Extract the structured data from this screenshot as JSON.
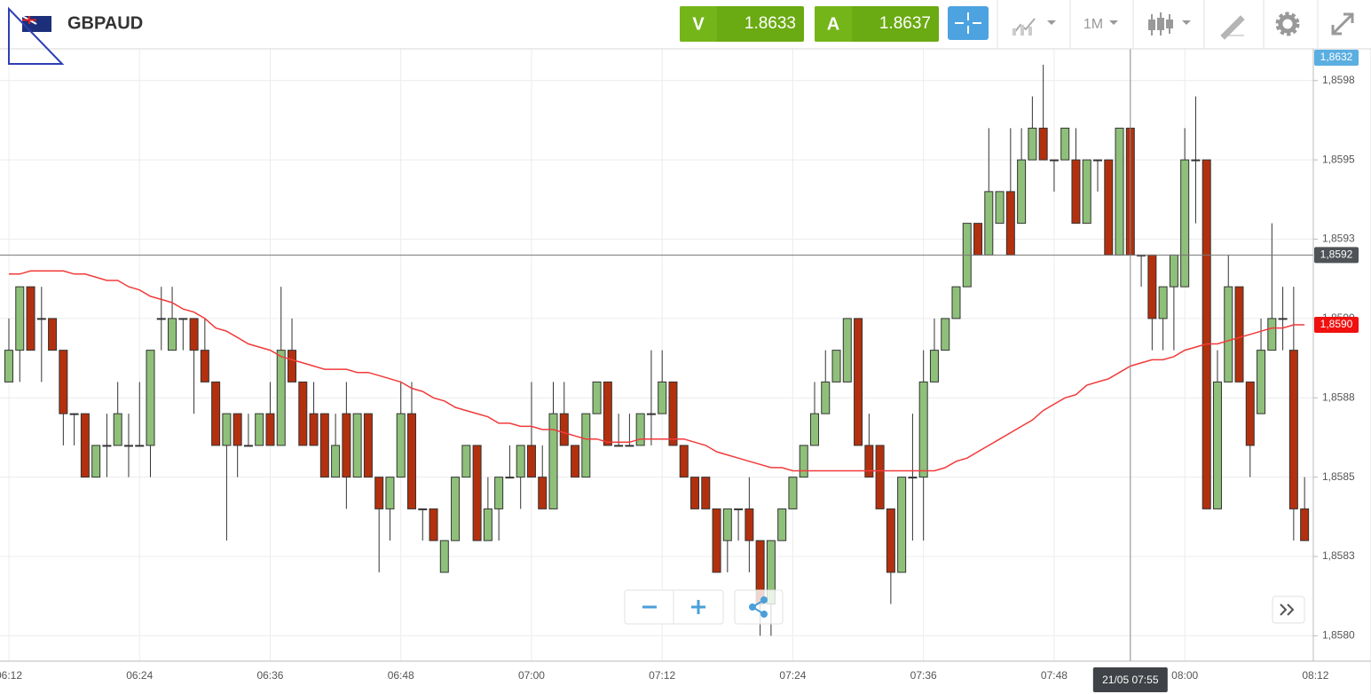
{
  "header": {
    "symbol": "GBPAUD",
    "bid": {
      "letter": "V",
      "price": "1.8633"
    },
    "ask": {
      "letter": "A",
      "price": "1.8637"
    },
    "timeframe": "1M"
  },
  "chart_data": {
    "type": "candlestick",
    "x": [
      "06:12",
      "06:13",
      "06:14",
      "06:15",
      "06:16",
      "06:17",
      "06:18",
      "06:19",
      "06:20",
      "06:21",
      "06:22",
      "06:23",
      "06:24",
      "06:25",
      "06:26",
      "06:27",
      "06:28",
      "06:29",
      "06:30",
      "06:31",
      "06:32",
      "06:33",
      "06:34",
      "06:35",
      "06:36",
      "06:37",
      "06:38",
      "06:39",
      "06:40",
      "06:41",
      "06:42",
      "06:43",
      "06:44",
      "06:45",
      "06:46",
      "06:47",
      "06:48",
      "06:49",
      "06:50",
      "06:51",
      "06:52",
      "06:53",
      "06:54",
      "06:55",
      "06:56",
      "06:57",
      "06:58",
      "06:59",
      "07:00",
      "07:01",
      "07:02",
      "07:03",
      "07:04",
      "07:05",
      "07:06",
      "07:07",
      "07:08",
      "07:09",
      "07:10",
      "07:11",
      "07:12",
      "07:13",
      "07:14",
      "07:15",
      "07:16",
      "07:17",
      "07:18",
      "07:19",
      "07:20",
      "07:21",
      "07:22",
      "07:23",
      "07:24",
      "07:25",
      "07:26",
      "07:27",
      "07:28",
      "07:29",
      "07:30",
      "07:31",
      "07:32",
      "07:33",
      "07:34",
      "07:35",
      "07:36",
      "07:37",
      "07:38",
      "07:39",
      "07:40",
      "07:41",
      "07:42",
      "07:43",
      "07:44",
      "07:45",
      "07:46",
      "07:47",
      "07:48",
      "07:49",
      "07:50",
      "07:51",
      "07:52",
      "07:53",
      "07:54",
      "07:55",
      "07:56",
      "07:57",
      "07:58",
      "07:59",
      "08:00",
      "08:01",
      "08:02",
      "08:03",
      "08:04",
      "08:05",
      "08:06",
      "08:07",
      "08:08",
      "08:09",
      "08:10",
      "08:11"
    ],
    "open": [
      1.8588,
      1.8589,
      1.8591,
      1.859,
      1.859,
      1.8589,
      1.8587,
      1.8587,
      1.8585,
      1.8586,
      1.8586,
      1.8586,
      1.8586,
      1.8586,
      1.859,
      1.8589,
      1.859,
      1.859,
      1.8589,
      1.8588,
      1.8586,
      1.8587,
      1.8586,
      1.8586,
      1.8587,
      1.8586,
      1.8589,
      1.8588,
      1.8587,
      1.8587,
      1.8585,
      1.8587,
      1.8585,
      1.8587,
      1.8585,
      1.8584,
      1.8585,
      1.8587,
      1.8584,
      1.8584,
      1.8582,
      1.8583,
      1.8585,
      1.8586,
      1.8583,
      1.8584,
      1.8585,
      1.8585,
      1.8586,
      1.8585,
      1.8584,
      1.8587,
      1.8586,
      1.8585,
      1.8587,
      1.8588,
      1.8586,
      1.8586,
      1.8586,
      1.8587,
      1.8587,
      1.8588,
      1.8586,
      1.8585,
      1.8585,
      1.8584,
      1.8583,
      1.8584,
      1.8584,
      1.8583,
      1.8581,
      1.8583,
      1.8584,
      1.8585,
      1.8586,
      1.8587,
      1.8588,
      1.8588,
      1.859,
      1.8586,
      1.8586,
      1.8584,
      1.8582,
      1.8585,
      1.8585,
      1.8588,
      1.8589,
      1.859,
      1.8591,
      1.8593,
      1.8592,
      1.8593,
      1.8594,
      1.8593,
      1.8595,
      1.8596,
      1.8595,
      1.8595,
      1.8595,
      1.8593,
      1.8595,
      1.8595,
      1.8592,
      1.8596,
      1.8592,
      1.8592,
      1.859,
      1.8591,
      1.8591,
      1.8595,
      1.8595,
      1.8584,
      1.8588,
      1.8591,
      1.8588,
      1.8587,
      1.8589,
      1.859,
      1.8589,
      1.8584
    ],
    "high": [
      1.859,
      1.8591,
      1.8591,
      1.8591,
      1.859,
      1.8589,
      1.8587,
      1.8587,
      1.8586,
      1.8587,
      1.8588,
      1.8587,
      1.8588,
      1.8589,
      1.8591,
      1.8591,
      1.859,
      1.859,
      1.859,
      1.8588,
      1.8587,
      1.8587,
      1.8587,
      1.8587,
      1.8588,
      1.8591,
      1.859,
      1.8588,
      1.8588,
      1.8587,
      1.8587,
      1.8588,
      1.8587,
      1.8587,
      1.8585,
      1.8585,
      1.8588,
      1.8588,
      1.8584,
      1.8584,
      1.8583,
      1.8585,
      1.8586,
      1.8586,
      1.8585,
      1.8585,
      1.8586,
      1.8586,
      1.8588,
      1.8586,
      1.8588,
      1.8588,
      1.8586,
      1.8587,
      1.8588,
      1.8588,
      1.8587,
      1.8587,
      1.8587,
      1.8589,
      1.8589,
      1.8588,
      1.8586,
      1.8585,
      1.8585,
      1.8584,
      1.8584,
      1.8584,
      1.8585,
      1.8583,
      1.8583,
      1.8584,
      1.8585,
      1.8586,
      1.8588,
      1.8589,
      1.8589,
      1.859,
      1.859,
      1.8587,
      1.8586,
      1.8584,
      1.8585,
      1.8587,
      1.8589,
      1.859,
      1.859,
      1.8591,
      1.8593,
      1.8593,
      1.8596,
      1.8594,
      1.8596,
      1.8596,
      1.8597,
      1.8598,
      1.8595,
      1.8596,
      1.8596,
      1.8595,
      1.8595,
      1.8595,
      1.8596,
      1.8596,
      1.8592,
      1.8592,
      1.8591,
      1.8592,
      1.8596,
      1.8597,
      1.8595,
      1.8589,
      1.8592,
      1.8591,
      1.8588,
      1.859,
      1.8593,
      1.8591,
      1.8591,
      1.8585
    ],
    "low": [
      1.8588,
      1.8588,
      1.8589,
      1.8588,
      1.8589,
      1.8586,
      1.8586,
      1.8585,
      1.8585,
      1.8585,
      1.8586,
      1.8585,
      1.8586,
      1.8585,
      1.8589,
      1.8589,
      1.8589,
      1.8587,
      1.8588,
      1.8586,
      1.8583,
      1.8585,
      1.8586,
      1.8586,
      1.8586,
      1.8586,
      1.8588,
      1.8586,
      1.8586,
      1.8585,
      1.8585,
      1.8584,
      1.8585,
      1.8585,
      1.8582,
      1.8583,
      1.8585,
      1.8584,
      1.8583,
      1.8583,
      1.8582,
      1.8583,
      1.8585,
      1.8583,
      1.8583,
      1.8583,
      1.8585,
      1.8584,
      1.8585,
      1.8584,
      1.8584,
      1.8586,
      1.8585,
      1.8585,
      1.8587,
      1.8586,
      1.8586,
      1.8586,
      1.8586,
      1.8586,
      1.8587,
      1.8586,
      1.8585,
      1.8584,
      1.8584,
      1.8582,
      1.8582,
      1.8583,
      1.8582,
      1.858,
      1.858,
      1.8583,
      1.8584,
      1.8585,
      1.8586,
      1.8587,
      1.8588,
      1.8588,
      1.8586,
      1.8585,
      1.8584,
      1.8581,
      1.8582,
      1.8583,
      1.8583,
      1.8588,
      1.8589,
      1.859,
      1.8591,
      1.8592,
      1.8592,
      1.8593,
      1.8592,
      1.8593,
      1.8595,
      1.8595,
      1.8594,
      1.8595,
      1.8593,
      1.8593,
      1.8594,
      1.8592,
      1.8592,
      1.8592,
      1.8591,
      1.8589,
      1.8589,
      1.8589,
      1.8591,
      1.8593,
      1.8584,
      1.8584,
      1.8588,
      1.8588,
      1.8585,
      1.8587,
      1.8589,
      1.8589,
      1.8583,
      1.8583
    ],
    "close": [
      1.8589,
      1.8591,
      1.8589,
      1.859,
      1.8589,
      1.8587,
      1.8587,
      1.8585,
      1.8586,
      1.8586,
      1.8587,
      1.8586,
      1.8586,
      1.8589,
      1.859,
      1.859,
      1.859,
      1.8589,
      1.8588,
      1.8586,
      1.8587,
      1.8586,
      1.8586,
      1.8587,
      1.8586,
      1.8589,
      1.8588,
      1.8586,
      1.8586,
      1.8585,
      1.8586,
      1.8585,
      1.8587,
      1.8585,
      1.8584,
      1.8585,
      1.8587,
      1.8584,
      1.8584,
      1.8583,
      1.8583,
      1.8585,
      1.8586,
      1.8583,
      1.8584,
      1.8585,
      1.8585,
      1.8586,
      1.8585,
      1.8584,
      1.8587,
      1.8586,
      1.8585,
      1.8587,
      1.8588,
      1.8586,
      1.8586,
      1.8586,
      1.8587,
      1.8587,
      1.8588,
      1.8586,
      1.8585,
      1.8584,
      1.8584,
      1.8582,
      1.8584,
      1.8584,
      1.8583,
      1.8581,
      1.8583,
      1.8584,
      1.8585,
      1.8586,
      1.8587,
      1.8588,
      1.8589,
      1.859,
      1.8586,
      1.8585,
      1.8584,
      1.8582,
      1.8585,
      1.8585,
      1.8588,
      1.8589,
      1.859,
      1.8591,
      1.8593,
      1.8592,
      1.8594,
      1.8594,
      1.8592,
      1.8595,
      1.8596,
      1.8595,
      1.8595,
      1.8596,
      1.8593,
      1.8595,
      1.8595,
      1.8592,
      1.8596,
      1.8592,
      1.8592,
      1.859,
      1.8591,
      1.8592,
      1.8595,
      1.8595,
      1.8584,
      1.8588,
      1.8591,
      1.8588,
      1.8586,
      1.8589,
      1.859,
      1.859,
      1.8584,
      1.8583
    ],
    "up_color": "#8fc07a",
    "down_color": "#b3300e",
    "overlay": {
      "color": "#f23a3a",
      "values": [
        1.85914,
        1.85914,
        1.85915,
        1.85915,
        1.85915,
        1.85915,
        1.85914,
        1.85914,
        1.85913,
        1.85912,
        1.85912,
        1.8591,
        1.85909,
        1.85907,
        1.85906,
        1.85905,
        1.85903,
        1.85902,
        1.859,
        1.85897,
        1.85896,
        1.85894,
        1.85892,
        1.85891,
        1.8589,
        1.85888,
        1.85887,
        1.85886,
        1.85885,
        1.85884,
        1.85884,
        1.85884,
        1.85883,
        1.85883,
        1.85882,
        1.85881,
        1.8588,
        1.85878,
        1.85877,
        1.85875,
        1.85874,
        1.85872,
        1.85871,
        1.8587,
        1.85869,
        1.85867,
        1.85867,
        1.85866,
        1.85866,
        1.85865,
        1.85865,
        1.85864,
        1.85863,
        1.85862,
        1.85862,
        1.85861,
        1.85861,
        1.85861,
        1.85862,
        1.85862,
        1.85862,
        1.85862,
        1.85862,
        1.85861,
        1.8586,
        1.85858,
        1.85857,
        1.85856,
        1.85855,
        1.85854,
        1.85853,
        1.85853,
        1.85852,
        1.85852,
        1.85852,
        1.85852,
        1.85852,
        1.85852,
        1.85852,
        1.85852,
        1.85852,
        1.85852,
        1.85852,
        1.85852,
        1.85852,
        1.85852,
        1.85853,
        1.85855,
        1.85856,
        1.85858,
        1.8586,
        1.85862,
        1.85864,
        1.85866,
        1.85868,
        1.85871,
        1.85873,
        1.85875,
        1.85876,
        1.85879,
        1.8588,
        1.85881,
        1.85883,
        1.85885,
        1.85886,
        1.85887,
        1.85887,
        1.85888,
        1.8589,
        1.85891,
        1.85892,
        1.85892,
        1.85893,
        1.85894,
        1.85895,
        1.85896,
        1.85897,
        1.85897,
        1.85898,
        1.85898
      ]
    },
    "ylim": [
      1.85792,
      1.85985
    ],
    "yticks": [
      {
        "value": 1.85975,
        "label": "1,8598"
      },
      {
        "value": 1.8595,
        "label": "1,8595"
      },
      {
        "value": 1.85925,
        "label": "1,8593"
      },
      {
        "value": 1.859,
        "label": "1,8590"
      },
      {
        "value": 1.85875,
        "label": "1,8588"
      },
      {
        "value": 1.8585,
        "label": "1,8585"
      },
      {
        "value": 1.85825,
        "label": "1,8583"
      },
      {
        "value": 1.858,
        "label": "1,8580"
      }
    ],
    "xticks": [
      "06:12",
      "06:24",
      "06:36",
      "06:48",
      "07:00",
      "07:12",
      "07:24",
      "07:36",
      "07:48",
      "08:00",
      "08:12"
    ],
    "grid": true,
    "last_price": {
      "value": 1.8632,
      "label": "1,8632"
    },
    "overlay_label": {
      "value": 1.85898,
      "label": "1,8590"
    },
    "crosshair": {
      "x": "07:55",
      "x_label": "21/05 07:55",
      "y": {
        "value": 1.8592,
        "label": "1,8592"
      }
    }
  }
}
